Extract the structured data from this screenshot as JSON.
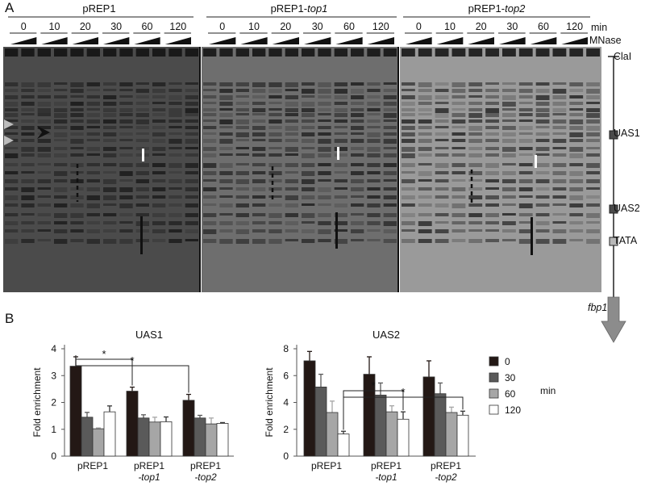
{
  "panel_a": {
    "letter": "A",
    "groups": [
      {
        "name": "pREP1",
        "suffix": ""
      },
      {
        "name": "pREP1-",
        "suffix": "top1"
      },
      {
        "name": "pREP1-",
        "suffix": "top2"
      }
    ],
    "times": [
      "0",
      "10",
      "20",
      "30",
      "60",
      "120"
    ],
    "time_unit": "min",
    "mnase_label": "MNase",
    "map": {
      "clai": "ClaI",
      "uas1": "UAS1",
      "uas2": "UAS2",
      "tata": "TATA",
      "gene": "fbp1"
    },
    "colors": {
      "uas": "#4a4a4a",
      "tata": "#b8b8b8",
      "arrow": "#8c8c8c"
    }
  },
  "panel_b": {
    "letter": "B",
    "legend": {
      "labels": [
        "0",
        "30",
        "60",
        "120"
      ],
      "unit": "min"
    },
    "colors": [
      "#231815",
      "#5a5a5a",
      "#a6a6a6",
      "#ffffff"
    ]
  },
  "chart_data": [
    {
      "type": "bar",
      "title": "UAS1",
      "ylabel": "Fold enrichment",
      "ylim": [
        0,
        4
      ],
      "yticks": [
        "0",
        "1",
        "2",
        "3",
        "4"
      ],
      "categories": [
        [
          "pREP1",
          ""
        ],
        [
          "pREP1",
          "-top1"
        ],
        [
          "pREP1",
          "-top2"
        ]
      ],
      "series": [
        {
          "name": "0",
          "values": [
            3.35,
            2.42,
            2.08
          ],
          "errors": [
            0.35,
            0.15,
            0.22
          ]
        },
        {
          "name": "30",
          "values": [
            1.45,
            1.42,
            1.42
          ],
          "errors": [
            0.18,
            0.12,
            0.1
          ]
        },
        {
          "name": "60",
          "values": [
            1.02,
            1.27,
            1.2
          ],
          "errors": [
            0.03,
            0.18,
            0.22
          ]
        },
        {
          "name": "120",
          "values": [
            1.65,
            1.28,
            1.22
          ],
          "errors": [
            0.22,
            0.18,
            0.03
          ]
        }
      ],
      "significance": [
        {
          "label": "*",
          "from": [
            0,
            0
          ],
          "to": [
            1,
            0
          ]
        },
        {
          "label": "*",
          "from": [
            0,
            0
          ],
          "to": [
            2,
            0
          ]
        }
      ]
    },
    {
      "type": "bar",
      "title": "UAS2",
      "ylabel": "Fold enrichment",
      "ylim": [
        0,
        8
      ],
      "yticks": [
        "0",
        "2",
        "4",
        "6",
        "8"
      ],
      "categories": [
        [
          "pREP1",
          ""
        ],
        [
          "pREP1",
          "-top1"
        ],
        [
          "pREP1",
          "-top2"
        ]
      ],
      "series": [
        {
          "name": "0",
          "values": [
            7.1,
            6.1,
            5.9
          ],
          "errors": [
            0.7,
            1.3,
            1.2
          ]
        },
        {
          "name": "30",
          "values": [
            5.15,
            4.55,
            4.65
          ],
          "errors": [
            0.95,
            0.9,
            0.8
          ]
        },
        {
          "name": "60",
          "values": [
            3.25,
            3.3,
            3.25
          ],
          "errors": [
            0.85,
            0.45,
            0.4
          ]
        },
        {
          "name": "120",
          "values": [
            1.65,
            2.75,
            3.05
          ],
          "errors": [
            0.2,
            0.55,
            0.3
          ]
        }
      ],
      "significance": [
        {
          "label": "*",
          "from": [
            0,
            3
          ],
          "to": [
            1,
            3
          ]
        },
        {
          "label": "*",
          "from": [
            0,
            3
          ],
          "to": [
            2,
            3
          ]
        }
      ]
    }
  ]
}
